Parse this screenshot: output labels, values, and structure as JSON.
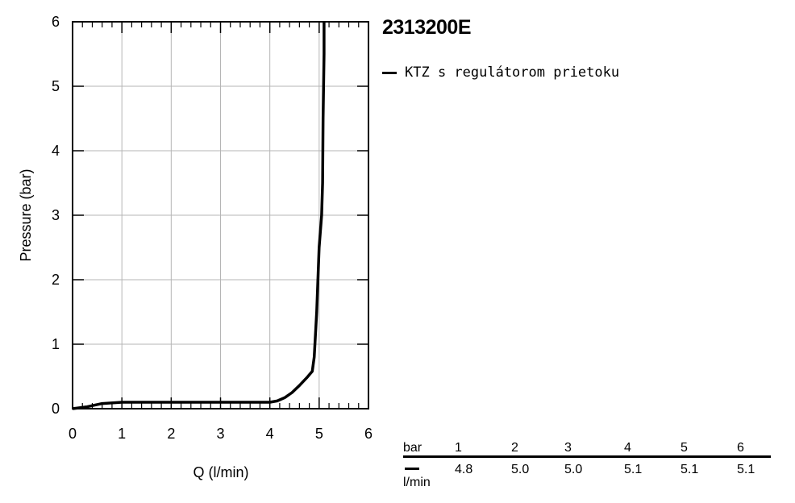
{
  "chart_data": {
    "type": "line",
    "title": "2313200E",
    "xlabel": "Q (l/min)",
    "ylabel": "Pressure (bar)",
    "xlim": [
      0,
      6
    ],
    "ylim": [
      0,
      6
    ],
    "xticks": [
      "0",
      "1",
      "2",
      "3",
      "4",
      "5",
      "6"
    ],
    "yticks": [
      "0",
      "1",
      "2",
      "3",
      "4",
      "5",
      "6"
    ],
    "grid": true,
    "legend_position": "right",
    "series": [
      {
        "name": "KTZ s regulátorom prietoku",
        "color": "#000000",
        "x": [
          0,
          0.3,
          0.6,
          1.0,
          2.0,
          3.0,
          4.0,
          4.15,
          4.3,
          4.45,
          4.6,
          4.75,
          4.86,
          4.9,
          4.95,
          5.0,
          5.05,
          5.07,
          5.08,
          5.1,
          5.1
        ],
        "y": [
          0,
          0.03,
          0.08,
          0.1,
          0.1,
          0.1,
          0.1,
          0.12,
          0.17,
          0.25,
          0.36,
          0.48,
          0.58,
          0.8,
          1.5,
          2.5,
          3.0,
          3.5,
          4.5,
          5.5,
          6.0
        ]
      }
    ]
  },
  "table": {
    "header_label": "bar",
    "unit_label": "l/min",
    "columns": [
      "1",
      "2",
      "3",
      "4",
      "5",
      "6"
    ],
    "values": [
      "4.8",
      "5.0",
      "5.0",
      "5.1",
      "5.1",
      "5.1"
    ]
  }
}
